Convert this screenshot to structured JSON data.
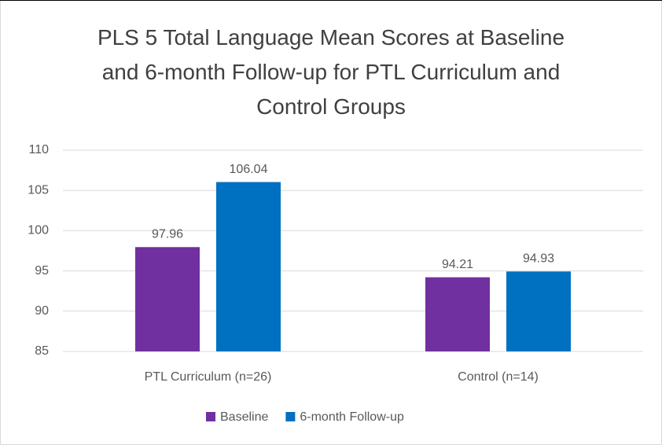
{
  "chart_data": {
    "type": "bar",
    "title": "PLS 5 Total Language Mean Scores at Baseline and 6-month Follow-up for PTL Curriculum and Control Groups",
    "categories": [
      "PTL Curriculum (n=26)",
      "Control (n=14)"
    ],
    "series": [
      {
        "name": "Baseline",
        "color": "#7030a0",
        "values": [
          97.96,
          94.21
        ]
      },
      {
        "name": "6-month Follow-up",
        "color": "#0070c0",
        "values": [
          106.04,
          94.93
        ]
      }
    ],
    "ylim": [
      85,
      110
    ],
    "yticks": [
      85,
      90,
      95,
      100,
      105,
      110
    ],
    "grid": true,
    "legend": "bottom"
  }
}
